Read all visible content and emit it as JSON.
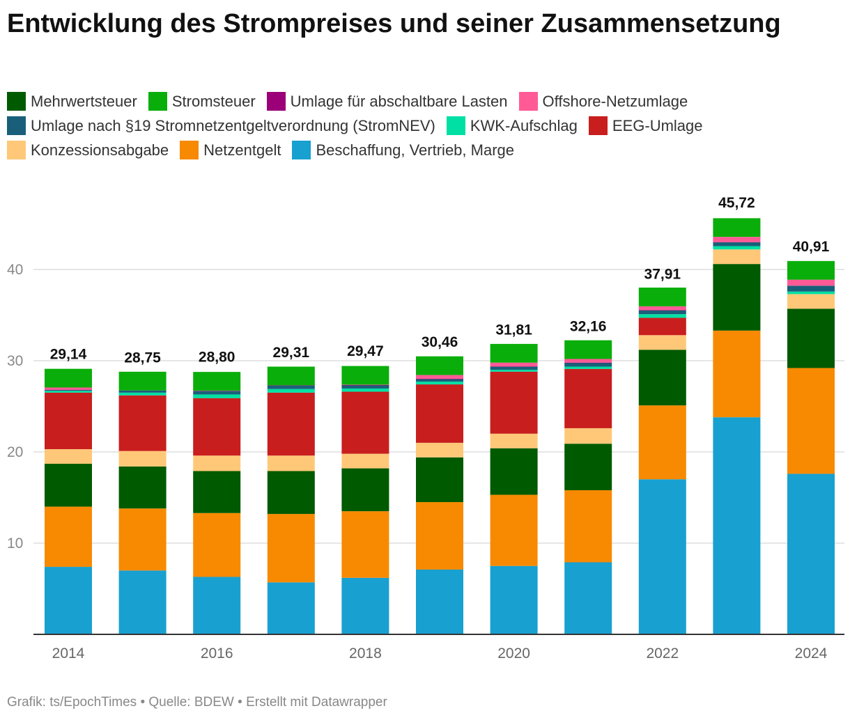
{
  "title": "Entwicklung des Strompreises und seiner Zusammensetzung",
  "footer": "Grafik: ts/EpochTimes • Quelle: BDEW • Erstellt mit Datawrapper",
  "legend": [
    {
      "name": "Mehrwertsteuer",
      "color": "#005a00"
    },
    {
      "name": "Stromsteuer",
      "color": "#0aae0a"
    },
    {
      "name": "Umlage für abschaltbare Lasten",
      "color": "#9b0078"
    },
    {
      "name": "Offshore-Netzumlage",
      "color": "#ff5a96"
    },
    {
      "name": "Umlage nach §19 Stromnetzentgeltverordnung (StromNEV)",
      "color": "#1a5f7a"
    },
    {
      "name": "KWK-Aufschlag",
      "color": "#00e0a4"
    },
    {
      "name": "EEG-Umlage",
      "color": "#c81e1e"
    },
    {
      "name": "Konzessionsabgabe",
      "color": "#ffc878"
    },
    {
      "name": "Netzentgelt",
      "color": "#f78a00"
    },
    {
      "name": "Beschaffung, Vertrieb, Marge",
      "color": "#18a0d0"
    }
  ],
  "chart_data": {
    "type": "bar",
    "stacked": true,
    "title": "Entwicklung des Strompreises und seiner Zusammensetzung",
    "categories": [
      "2014",
      "2015",
      "2016",
      "2017",
      "2018",
      "2019",
      "2020",
      "2021",
      "2022",
      "2023",
      "2024"
    ],
    "x_tick_labels": [
      "2014",
      "2016",
      "2018",
      "2020",
      "2022",
      "2024"
    ],
    "y_ticks": [
      10,
      20,
      30,
      40
    ],
    "ylim": [
      0,
      48
    ],
    "grid": true,
    "legend_position": "top",
    "totals": [
      29.14,
      28.75,
      28.8,
      29.31,
      29.47,
      30.46,
      31.81,
      32.16,
      37.91,
      45.72,
      40.91
    ],
    "total_labels": [
      "29,14",
      "28,75",
      "28,80",
      "29,31",
      "29,47",
      "30,46",
      "31,81",
      "32,16",
      "37,91",
      "45,72",
      "40,91"
    ],
    "series": [
      {
        "name": "Beschaffung, Vertrieb, Marge",
        "color": "#18a0d0",
        "values": [
          7.4,
          7.0,
          6.3,
          5.7,
          6.2,
          7.1,
          7.5,
          7.9,
          17.0,
          23.8,
          17.6
        ]
      },
      {
        "name": "Netzentgelt",
        "color": "#f78a00",
        "values": [
          6.6,
          6.8,
          7.0,
          7.5,
          7.3,
          7.4,
          7.8,
          7.9,
          8.1,
          9.5,
          11.6
        ]
      },
      {
        "name": "Mehrwertsteuer",
        "color": "#005a00",
        "values": [
          4.7,
          4.6,
          4.6,
          4.7,
          4.7,
          4.9,
          5.1,
          5.1,
          6.1,
          7.3,
          6.5
        ]
      },
      {
        "name": "Konzessionsabgabe",
        "color": "#ffc878",
        "values": [
          1.6,
          1.7,
          1.7,
          1.7,
          1.6,
          1.6,
          1.6,
          1.7,
          1.6,
          1.6,
          1.6
        ]
      },
      {
        "name": "EEG-Umlage",
        "color": "#c81e1e",
        "values": [
          6.2,
          6.1,
          6.3,
          6.9,
          6.8,
          6.4,
          6.8,
          6.5,
          1.9,
          0,
          0
        ]
      },
      {
        "name": "KWK-Aufschlag",
        "color": "#00e0a4",
        "values": [
          0.2,
          0.3,
          0.4,
          0.4,
          0.35,
          0.3,
          0.2,
          0.25,
          0.4,
          0.36,
          0.28
        ]
      },
      {
        "name": "Umlage nach §19 Stromnetzentgeltverordnung (StromNEV)",
        "color": "#1a5f7a",
        "values": [
          0.1,
          0.24,
          0.38,
          0.39,
          0.37,
          0.3,
          0.36,
          0.43,
          0.44,
          0.42,
          0.64
        ]
      },
      {
        "name": "Umlage für abschaltbare Lasten",
        "color": "#9b0078",
        "values": [
          0.01,
          0,
          0,
          0.01,
          0.01,
          0.01,
          0.01,
          0.01,
          0.003,
          0,
          0
        ]
      },
      {
        "name": "Offshore-Netzumlage",
        "color": "#ff5a96",
        "values": [
          0.25,
          0,
          0.04,
          0,
          0.04,
          0.42,
          0.42,
          0.4,
          0.42,
          0.59,
          0.66
        ]
      },
      {
        "name": "Stromsteuer",
        "color": "#0aae0a",
        "values": [
          2.05,
          2.05,
          2.05,
          2.05,
          2.05,
          2.05,
          2.05,
          2.05,
          2.05,
          2.05,
          2.05
        ]
      }
    ]
  }
}
